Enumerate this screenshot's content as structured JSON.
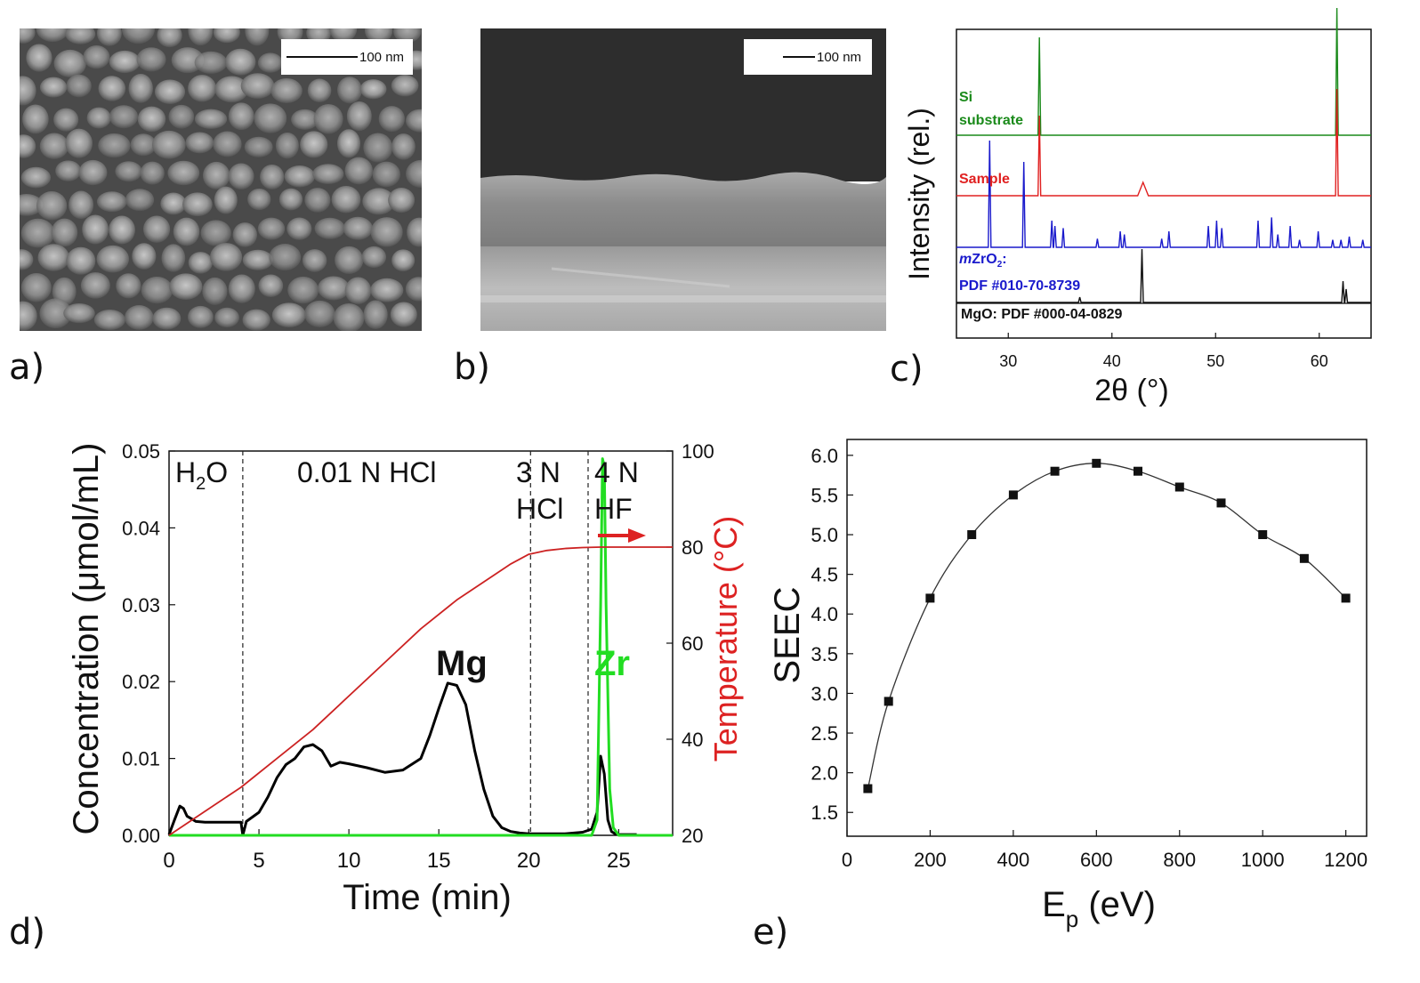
{
  "panels": {
    "a": {
      "label": "a)",
      "scale_label": "100 nm"
    },
    "b": {
      "label": "b)",
      "scale_label": "100 nm"
    },
    "c": {
      "label": "c)",
      "ylabel": "Intensity (rel.)",
      "xlabel": "2θ (°)",
      "xticks": [
        "30",
        "40",
        "50",
        "60"
      ],
      "traces": [
        {
          "name": "Si substrate",
          "line1": "Si",
          "line2": "substrate",
          "color": "#1a8a1a"
        },
        {
          "name": "Sample",
          "color": "#e02020"
        },
        {
          "name": "mZrO2: PDF #010-70-8739",
          "prefix": "m",
          "formula": "ZrO",
          "sub": "2",
          "suffix": ":",
          "line2": "PDF #010-70-8739",
          "color": "#1a1acc"
        },
        {
          "name": "MgO: PDF #000-04-0829",
          "color": "#111111"
        }
      ]
    },
    "d": {
      "label": "d)",
      "ylabel": "Concentration (μmol/mL)",
      "y2label": "Temperature (°C)",
      "xlabel": "Time (min)",
      "regions": [
        {
          "l1": "H",
          "sub": "2",
          "l2": "O"
        },
        {
          "l1": "0.01 N HCl"
        },
        {
          "l1": "3 N",
          "l3": "HCl"
        },
        {
          "l1": "4 N",
          "l3": "HF"
        }
      ],
      "mg_label": "Mg",
      "zr_label": "Zr"
    },
    "e": {
      "label": "e)",
      "ylabel": "SEEC",
      "xlabel_main": "E",
      "xlabel_sub": "p",
      "xlabel_unit": " (eV)"
    }
  },
  "chart_data": [
    {
      "type": "line",
      "title": "",
      "panel": "c",
      "xlabel": "2θ (°)",
      "ylabel": "Intensity (rel.)",
      "xlim": [
        25,
        65
      ],
      "series": [
        {
          "name": "Si substrate",
          "peaks": [
            [
              33.0,
              1.0
            ],
            [
              61.7,
              1.3
            ]
          ]
        },
        {
          "name": "Sample",
          "peaks": [
            [
              33.0,
              0.9
            ],
            [
              43.0,
              0.15
            ],
            [
              61.7,
              1.2
            ]
          ]
        },
        {
          "name": "mZrO2: PDF #010-70-8739",
          "peaks": [
            [
              28.2,
              1.0
            ],
            [
              31.5,
              0.8
            ],
            [
              34.2,
              0.25
            ],
            [
              34.5,
              0.2
            ],
            [
              35.3,
              0.18
            ],
            [
              38.6,
              0.08
            ],
            [
              40.8,
              0.15
            ],
            [
              41.2,
              0.12
            ],
            [
              44.8,
              0.08
            ],
            [
              45.5,
              0.15
            ],
            [
              49.3,
              0.2
            ],
            [
              50.1,
              0.25
            ],
            [
              50.6,
              0.18
            ],
            [
              54.1,
              0.25
            ],
            [
              55.4,
              0.28
            ],
            [
              56.0,
              0.12
            ],
            [
              57.2,
              0.2
            ],
            [
              58.1,
              0.07
            ],
            [
              59.9,
              0.15
            ],
            [
              61.3,
              0.07
            ],
            [
              62.1,
              0.07
            ],
            [
              62.9,
              0.1
            ],
            [
              64.2,
              0.07
            ]
          ]
        },
        {
          "name": "MgO: PDF #000-04-0829",
          "peaks": [
            [
              36.9,
              0.1
            ],
            [
              42.9,
              1.0
            ],
            [
              62.3,
              0.4
            ],
            [
              62.6,
              0.25
            ]
          ]
        }
      ]
    },
    {
      "type": "line",
      "title": "",
      "panel": "d",
      "xlabel": "Time (min)",
      "ylabel": "Concentration (μmol/mL)",
      "y2label": "Temperature (°C)",
      "xlim": [
        0,
        28
      ],
      "ylim": [
        0,
        0.05
      ],
      "y2lim": [
        20,
        100
      ],
      "xticks": [
        0,
        5,
        10,
        15,
        20,
        25
      ],
      "yticks": [
        0.0,
        0.01,
        0.02,
        0.03,
        0.04,
        0.05
      ],
      "y2ticks": [
        20,
        40,
        60,
        80,
        100
      ],
      "dividers": [
        4.1,
        20.1,
        23.3
      ],
      "series": [
        {
          "name": "Mg",
          "color": "#000000",
          "x": [
            0,
            0.3,
            0.6,
            0.8,
            1.0,
            1.5,
            2,
            3,
            4,
            4.1,
            4.3,
            5,
            5.5,
            6,
            6.5,
            7,
            7.5,
            8,
            8.5,
            9,
            9.5,
            10,
            11,
            12,
            13,
            14,
            14.5,
            15,
            15.5,
            16,
            16.5,
            17,
            17.5,
            18,
            18.5,
            19,
            19.5,
            20,
            21,
            22,
            23,
            23.5,
            23.8,
            24.0,
            24.2,
            24.4,
            24.6,
            24.8,
            25,
            26
          ],
          "y": [
            0.0001,
            0.002,
            0.0038,
            0.0035,
            0.0025,
            0.0018,
            0.0017,
            0.0017,
            0.0017,
            0.0,
            0.0018,
            0.003,
            0.005,
            0.0075,
            0.0092,
            0.01,
            0.0115,
            0.0118,
            0.011,
            0.009,
            0.0095,
            0.0093,
            0.0088,
            0.0082,
            0.0085,
            0.01,
            0.013,
            0.0165,
            0.0198,
            0.0195,
            0.017,
            0.011,
            0.006,
            0.0025,
            0.001,
            0.0005,
            0.0003,
            0.0002,
            0.0002,
            0.0002,
            0.0004,
            0.0008,
            0.003,
            0.0103,
            0.008,
            0.002,
            0.0005,
            0.0002,
            0.0001,
            0.0001
          ]
        },
        {
          "name": "Zr",
          "color": "#22dd22",
          "x": [
            0,
            23.5,
            23.8,
            24.0,
            24.1,
            24.2,
            24.3,
            24.5,
            24.7,
            25,
            26,
            28
          ],
          "y": [
            0,
            0,
            0.002,
            0.03,
            0.049,
            0.048,
            0.03,
            0.006,
            0.001,
            0,
            0,
            0
          ]
        },
        {
          "name": "Temperature",
          "color": "#cc2222",
          "axis": "y2",
          "x": [
            0,
            2,
            4,
            6,
            8,
            10,
            12,
            14,
            16,
            18,
            19,
            20,
            21,
            22,
            23,
            24,
            26,
            28
          ],
          "y": [
            20,
            25,
            30,
            36,
            42,
            49,
            56,
            63,
            69,
            74,
            76.5,
            78.5,
            79.3,
            79.7,
            79.9,
            80,
            80,
            80
          ]
        }
      ]
    },
    {
      "type": "scatter",
      "title": "",
      "panel": "e",
      "xlabel": "Ep (eV)",
      "ylabel": "SEEC",
      "xlim": [
        0,
        1250
      ],
      "ylim": [
        1.2,
        6.2
      ],
      "xticks": [
        0,
        200,
        400,
        600,
        800,
        1000,
        1200
      ],
      "yticks": [
        1.5,
        2.0,
        2.5,
        3.0,
        3.5,
        4.0,
        4.5,
        5.0,
        5.5,
        6.0
      ],
      "x": [
        50,
        100,
        200,
        300,
        400,
        500,
        600,
        700,
        800,
        900,
        1000,
        1100,
        1200
      ],
      "y": [
        1.8,
        2.9,
        4.2,
        5.0,
        5.5,
        5.8,
        5.9,
        5.8,
        5.6,
        5.4,
        5.0,
        4.7,
        4.2
      ]
    }
  ]
}
